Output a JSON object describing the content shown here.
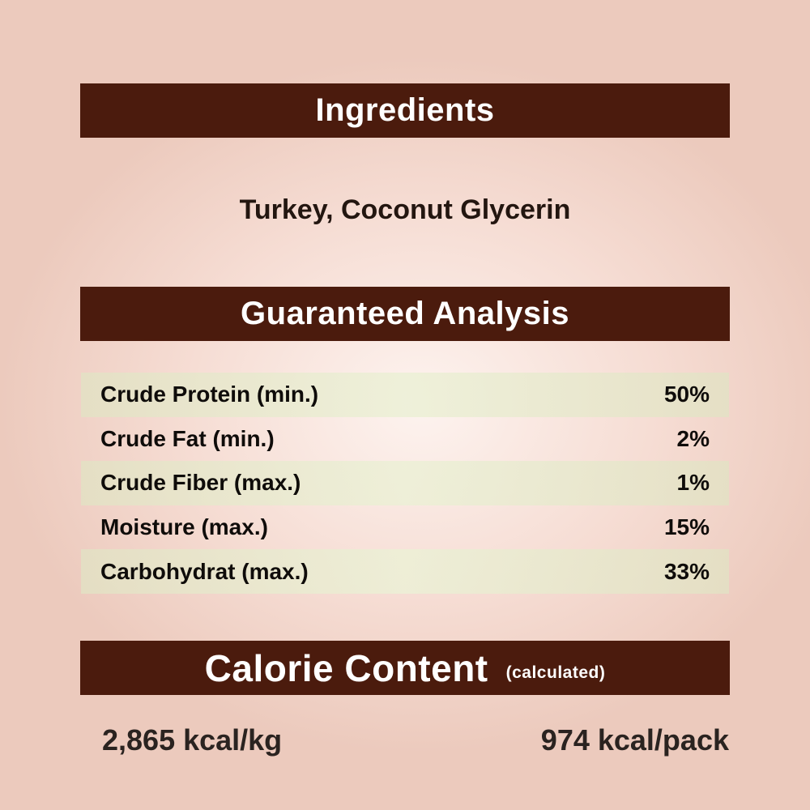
{
  "ingredients": {
    "title": "Ingredients",
    "text": "Turkey, Coconut Glycerin"
  },
  "analysis": {
    "title": "Guaranteed Analysis",
    "rows": [
      {
        "label": "Crude Protein (min.)",
        "value": "50%"
      },
      {
        "label": "Crude Fat (min.)",
        "value": "2%"
      },
      {
        "label": "Crude Fiber (max.)",
        "value": "1%"
      },
      {
        "label": "Moisture (max.)",
        "value": "15%"
      },
      {
        "label": "Carbohydrat (max.)",
        "value": "33%"
      }
    ]
  },
  "calories": {
    "title": "Calorie Content",
    "subtitle": "(calculated)",
    "per_kg": "2,865 kcal/kg",
    "per_pack": "974 kcal/pack"
  },
  "colors": {
    "header_bar": "#4b1b0d",
    "row_shade": "#e6e6c8",
    "background": "#f6ddd4"
  }
}
